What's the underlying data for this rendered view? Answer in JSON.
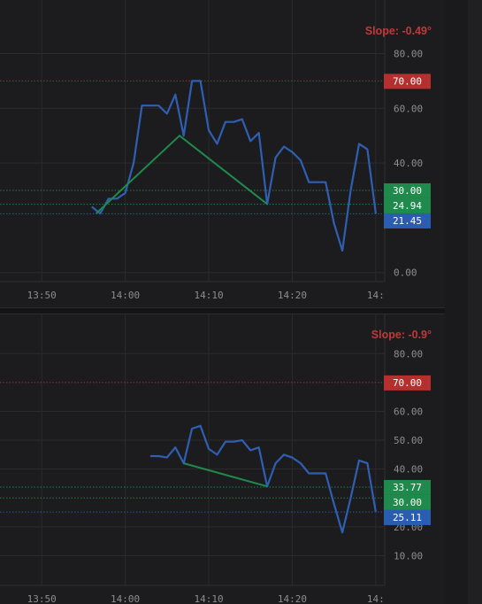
{
  "chart_data": [
    {
      "type": "line",
      "title": "",
      "slope_label": "Slope: -0.49°",
      "ylim": [
        -10,
        85
      ],
      "xlim": [
        0,
        51
      ],
      "y_ticks": [
        {
          "value": 80,
          "label": "80.00"
        },
        {
          "value": 60,
          "label": "60.00"
        },
        {
          "value": 40,
          "label": "40.00"
        },
        {
          "value": 0,
          "label": "0.00"
        }
      ],
      "x_ticks": [
        {
          "value": 5,
          "label": "13:50"
        },
        {
          "value": 15,
          "label": "14:00"
        },
        {
          "value": 25,
          "label": "14:10"
        },
        {
          "value": 35,
          "label": "14:20"
        },
        {
          "value": 45,
          "label": "14:"
        }
      ],
      "series": [
        {
          "color": "#2f5fb3",
          "x": [
            11,
            12,
            13,
            14,
            15,
            16,
            17,
            18,
            19,
            20,
            21,
            22,
            23,
            24,
            25,
            26,
            27,
            28,
            29,
            30,
            31,
            32,
            33,
            34,
            35,
            36,
            37,
            38,
            39,
            40,
            41,
            42,
            43,
            44,
            45
          ],
          "values": [
            24,
            21.5,
            27,
            27,
            29,
            40,
            61,
            61,
            61,
            58,
            65,
            50,
            70,
            70,
            52,
            47,
            55,
            55,
            56,
            48,
            51,
            25,
            42,
            46,
            44,
            41,
            33,
            33,
            33,
            18,
            8,
            30,
            47,
            45,
            21.45
          ]
        },
        {
          "color": "#1f8a4c",
          "x": [
            11.5,
            21.5,
            32
          ],
          "values": [
            21.5,
            50,
            25
          ]
        }
      ],
      "hlines": [
        {
          "value": 70,
          "color": "#b3302f",
          "label": "70.00"
        },
        {
          "value": 30,
          "color": "#1f8a4c",
          "label": "30.00"
        },
        {
          "value": 24.94,
          "color": "#1f8a4c",
          "label": "24.94"
        },
        {
          "value": 21.45,
          "color": "#2a5db0",
          "label": "21.45"
        }
      ]
    },
    {
      "type": "line",
      "title": "",
      "slope_label": "Slope: -0.9°",
      "ylim": [
        0,
        85
      ],
      "xlim": [
        0,
        51
      ],
      "y_ticks": [
        {
          "value": 80,
          "label": "80.00"
        },
        {
          "value": 60,
          "label": "60.00"
        },
        {
          "value": 50,
          "label": "50.00"
        },
        {
          "value": 40,
          "label": "40.00"
        },
        {
          "value": 20,
          "label": "20.00"
        },
        {
          "value": 10,
          "label": "10.00"
        }
      ],
      "x_ticks": [
        {
          "value": 5,
          "label": "13:50"
        },
        {
          "value": 15,
          "label": "14:00"
        },
        {
          "value": 25,
          "label": "14:10"
        },
        {
          "value": 35,
          "label": "14:20"
        },
        {
          "value": 45,
          "label": "14:"
        }
      ],
      "series": [
        {
          "color": "#2f5fb3",
          "x": [
            18,
            19,
            20,
            21,
            22,
            23,
            24,
            25,
            26,
            27,
            28,
            29,
            30,
            31,
            32,
            33,
            34,
            35,
            36,
            37,
            38,
            39,
            40,
            41,
            42,
            43,
            44,
            45
          ],
          "values": [
            44.5,
            44.5,
            44,
            47.5,
            42,
            54,
            55,
            47,
            45,
            49.5,
            49.5,
            50,
            46.5,
            47.5,
            34,
            42,
            45,
            44,
            42,
            38.5,
            38.5,
            38.5,
            28,
            18,
            30,
            43,
            42,
            25.11
          ]
        },
        {
          "color": "#1f8a4c",
          "x": [
            22,
            32
          ],
          "values": [
            42,
            34
          ]
        }
      ],
      "hlines": [
        {
          "value": 70,
          "color": "#b3302f",
          "label": "70.00"
        },
        {
          "value": 33.77,
          "color": "#1f8a4c",
          "label": "33.77"
        },
        {
          "value": 30,
          "color": "#1f8a4c",
          "label": "30.00"
        },
        {
          "value": 25.11,
          "color": "#2a5db0",
          "label": "25.11"
        }
      ]
    }
  ]
}
